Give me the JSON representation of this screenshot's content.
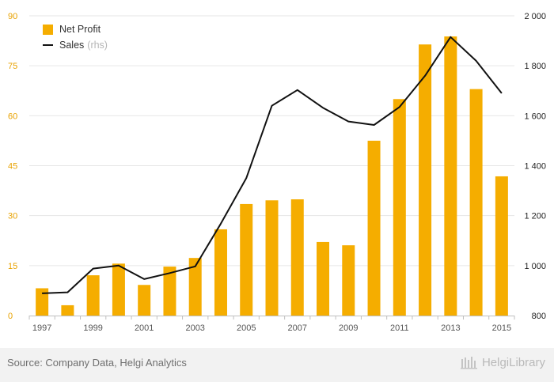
{
  "chart_data": {
    "type": "bar",
    "title": "",
    "xlabel": "",
    "ylabel": "",
    "years": [
      "1997",
      "1998",
      "1999",
      "2000",
      "2001",
      "2002",
      "2003",
      "2004",
      "2005",
      "2006",
      "2007",
      "2008",
      "2009",
      "2010",
      "2011",
      "2012",
      "2013",
      "2014",
      "2015"
    ],
    "x_tick_labels": [
      "1997",
      "1999",
      "2001",
      "2003",
      "2005",
      "2007",
      "2009",
      "2011",
      "2013",
      "2015"
    ],
    "left_axis": {
      "ylim": [
        0,
        90
      ],
      "ticks": [
        "0",
        "15",
        "30",
        "45",
        "60",
        "75",
        "90"
      ],
      "tick_values": [
        0,
        15,
        30,
        45,
        60,
        75,
        90
      ]
    },
    "right_axis": {
      "ylim": [
        800,
        2000
      ],
      "ticks": [
        "800",
        "1 000",
        "1 200",
        "1 400",
        "1 600",
        "1 800",
        "2 000"
      ],
      "tick_values": [
        800,
        1000,
        1200,
        1400,
        1600,
        1800,
        2000
      ]
    },
    "series": [
      {
        "name": "Net Profit",
        "type": "bar",
        "axis": "left",
        "color": "#f5ad00",
        "values": [
          8.2,
          3.1,
          12.1,
          15.6,
          9.2,
          14.7,
          17.3,
          25.9,
          33.5,
          34.6,
          34.9,
          22.1,
          21.1,
          52.5,
          65.0,
          81.4,
          83.8,
          68.0,
          41.8
        ]
      },
      {
        "name": "Sales",
        "note": "(rhs)",
        "type": "line",
        "axis": "right",
        "color": "#111111",
        "values": [
          889,
          893,
          988,
          1000,
          946,
          970,
          997,
          1168,
          1350,
          1640,
          1703,
          1632,
          1577,
          1563,
          1635,
          1760,
          1915,
          1820,
          1690
        ]
      }
    ],
    "grid": true,
    "legend_position": "top-left"
  },
  "legend": {
    "bar_label": "Net Profit",
    "line_label": "Sales",
    "line_note": "(rhs)"
  },
  "footer": {
    "source": "Source: Company Data, Helgi Analytics",
    "brand": "HelgiLibrary"
  }
}
